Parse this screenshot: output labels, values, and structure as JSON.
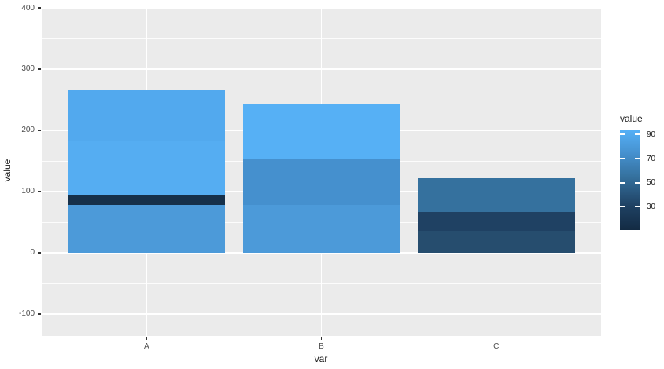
{
  "figure": {
    "background": "#FFFFFF",
    "panel_background": "#EBEBEB",
    "grid_color": "#FFFFFF",
    "tick_mark_color": "#333333",
    "tick_label_color": "#4D4D4D",
    "axis_title_color": "#1A1A1A"
  },
  "chart_data": {
    "type": "bar",
    "stacked": true,
    "orientation": "vertical",
    "title": "",
    "xlabel": "var",
    "ylabel": "value",
    "categories": [
      "A",
      "B",
      "C"
    ],
    "bars": [
      {
        "category": "A",
        "total": 267,
        "segments_bottom_to_top": [
          {
            "value": 78,
            "color": "#4C9AD9"
          },
          {
            "value": 16,
            "color": "#16304A"
          },
          {
            "value": 88,
            "color": "#55ADF2"
          },
          {
            "value": 85,
            "color": "#52A9EE"
          }
        ]
      },
      {
        "category": "B",
        "total": 243,
        "segments_bottom_to_top": [
          {
            "value": 78,
            "color": "#4C9AD9"
          },
          {
            "value": 74,
            "color": "#4590CE"
          },
          {
            "value": 91,
            "color": "#56B0F5"
          }
        ]
      },
      {
        "category": "C",
        "total": 122,
        "segments_bottom_to_top": [
          {
            "value": 36,
            "color": "#264D6E"
          },
          {
            "value": 31,
            "color": "#1F4163"
          },
          {
            "value": 55,
            "color": "#35719E"
          }
        ]
      }
    ],
    "y_axis": {
      "ticks": [
        400,
        300,
        200,
        100,
        0,
        -100
      ],
      "minor_ticks": [
        350,
        250,
        150,
        50,
        -50
      ],
      "panel_top_value": 400,
      "panel_bottom_value": -136,
      "grid": true
    },
    "x_axis": {
      "grid": true
    },
    "legend": {
      "title": "value",
      "position": "right",
      "ticks": [
        90,
        70,
        50,
        30
      ],
      "domain": [
        11,
        94
      ],
      "gradient_stops": [
        {
          "value": 94,
          "color": "#56B1F7"
        },
        {
          "value": 74,
          "color": "#4590CE"
        },
        {
          "value": 55,
          "color": "#35719E"
        },
        {
          "value": 31,
          "color": "#1F4163"
        },
        {
          "value": 11,
          "color": "#132B43"
        }
      ]
    }
  }
}
